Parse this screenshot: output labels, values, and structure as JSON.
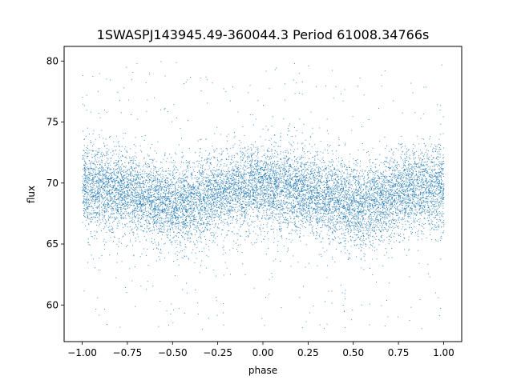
{
  "chart_data": {
    "type": "scatter",
    "title": "1SWASPJ143945.49-360044.3 Period 61008.34766s",
    "xlabel": "phase",
    "ylabel": "flux",
    "xlim": [
      -1.1,
      1.1
    ],
    "ylim": [
      57.0,
      81.2
    ],
    "xticks": [
      -1.0,
      -0.75,
      -0.5,
      -0.25,
      0.0,
      0.25,
      0.5,
      0.75,
      1.0
    ],
    "xtick_labels": [
      "−1.00",
      "−0.75",
      "−0.50",
      "−0.25",
      "0.00",
      "0.25",
      "0.50",
      "0.75",
      "1.00"
    ],
    "yticks": [
      60,
      65,
      70,
      75,
      80
    ],
    "ytick_labels": [
      "60",
      "65",
      "70",
      "75",
      "80"
    ],
    "grid": false,
    "legend": "none",
    "color": "#1f77b4",
    "x_range": [
      -1.0,
      1.0
    ],
    "y_clip": [
      58.0,
      80.0
    ],
    "trend": {
      "phase": [
        -1.0,
        -0.75,
        -0.5,
        -0.45,
        -0.25,
        0.0,
        0.25,
        0.5,
        0.55,
        0.75,
        1.0
      ],
      "median_flux": [
        69.7,
        69.3,
        68.2,
        68.0,
        69.2,
        69.8,
        69.3,
        68.2,
        68.0,
        69.3,
        69.7
      ]
    },
    "approx_point_count": 40000
  }
}
